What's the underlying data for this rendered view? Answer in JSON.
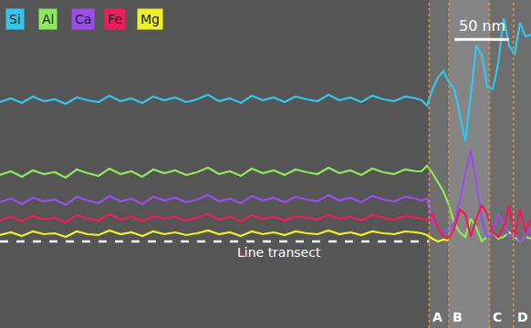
{
  "chart_data": {
    "type": "line",
    "tick_labels": false,
    "grid": false,
    "legend": "upper left",
    "xlim": [
      0,
      485
    ],
    "ylim": [
      0,
      360
    ],
    "x": [
      0,
      10,
      20,
      30,
      40,
      50,
      60,
      70,
      80,
      90,
      100,
      110,
      120,
      130,
      140,
      150,
      160,
      170,
      180,
      190,
      200,
      210,
      220,
      230,
      240,
      250,
      260,
      270,
      280,
      290,
      300,
      310,
      320,
      330,
      340,
      350,
      360,
      370,
      380,
      385,
      390,
      395,
      400,
      405,
      410,
      415,
      420,
      425,
      430,
      435,
      440,
      445,
      450,
      455,
      460,
      465,
      470,
      475,
      480,
      485
    ],
    "series": [
      {
        "name": "Si",
        "color": "#33c5ee",
        "values": [
          248,
          252,
          247,
          254,
          249,
          251,
          246,
          253,
          250,
          248,
          255,
          249,
          252,
          247,
          254,
          250,
          253,
          248,
          251,
          256,
          249,
          252,
          247,
          255,
          250,
          253,
          248,
          254,
          251,
          249,
          256,
          250,
          253,
          248,
          255,
          251,
          249,
          254,
          252,
          250,
          244,
          262,
          275,
          282,
          270,
          262,
          235,
          205,
          255,
          310,
          300,
          265,
          262,
          290,
          340,
          310,
          300,
          335,
          320,
          322
        ]
      },
      {
        "name": "Al",
        "color": "#8ee85a",
        "values": [
          168,
          172,
          166,
          173,
          169,
          171,
          165,
          174,
          170,
          167,
          175,
          169,
          172,
          166,
          174,
          170,
          173,
          168,
          171,
          176,
          169,
          172,
          167,
          175,
          170,
          173,
          168,
          174,
          171,
          169,
          176,
          170,
          173,
          168,
          175,
          171,
          169,
          174,
          172,
          172,
          178,
          170,
          160,
          150,
          135,
          115,
          105,
          100,
          120,
          110,
          95,
          100,
          105,
          98,
          100,
          105,
          100,
          95,
          100,
          98
        ]
      },
      {
        "name": "Ca",
        "color": "#9b4dea",
        "values": [
          138,
          142,
          136,
          143,
          139,
          141,
          135,
          144,
          140,
          137,
          145,
          139,
          142,
          136,
          144,
          140,
          143,
          138,
          141,
          146,
          139,
          142,
          137,
          145,
          140,
          143,
          138,
          144,
          141,
          139,
          146,
          140,
          143,
          138,
          145,
          141,
          139,
          144,
          142,
          140,
          142,
          120,
          110,
          105,
          108,
          115,
          140,
          170,
          195,
          160,
          120,
          100,
          105,
          125,
          115,
          100,
          105,
          95,
          100,
          110
        ]
      },
      {
        "name": "Fe",
        "color": "#ee1c5a",
        "values": [
          118,
          122,
          117,
          123,
          119,
          121,
          116,
          124,
          120,
          118,
          125,
          119,
          122,
          117,
          123,
          120,
          122,
          118,
          121,
          125,
          119,
          122,
          117,
          124,
          120,
          122,
          118,
          123,
          121,
          119,
          124,
          120,
          122,
          118,
          124,
          121,
          119,
          123,
          121,
          120,
          118,
          125,
          110,
          100,
          98,
          110,
          130,
          125,
          100,
          120,
          135,
          125,
          105,
          100,
          110,
          135,
          100,
          130,
          105,
          120
        ]
      },
      {
        "name": "Mg",
        "color": "#f0f028",
        "values": [
          102,
          105,
          101,
          106,
          103,
          104,
          100,
          106,
          103,
          102,
          107,
          103,
          105,
          101,
          106,
          103,
          105,
          102,
          104,
          107,
          103,
          105,
          101,
          106,
          103,
          105,
          102,
          106,
          104,
          103,
          107,
          103,
          105,
          102,
          106,
          104,
          103,
          106,
          105,
          104,
          102,
          98,
          95,
          97,
          96,
          null,
          null,
          null,
          null,
          null,
          null,
          null,
          null,
          null,
          null,
          null,
          null,
          null,
          null,
          null
        ]
      }
    ],
    "boundaries": [
      {
        "label": "A",
        "x": 392
      },
      {
        "label": "B",
        "x": 410
      },
      {
        "label": "C",
        "x": 447
      },
      {
        "label": "D",
        "x": 469
      }
    ],
    "transect": {
      "label": "Line transect",
      "y": 95,
      "x": [
        0,
        392
      ]
    },
    "scale_bar": {
      "label": "50 nm",
      "length": 50
    }
  }
}
